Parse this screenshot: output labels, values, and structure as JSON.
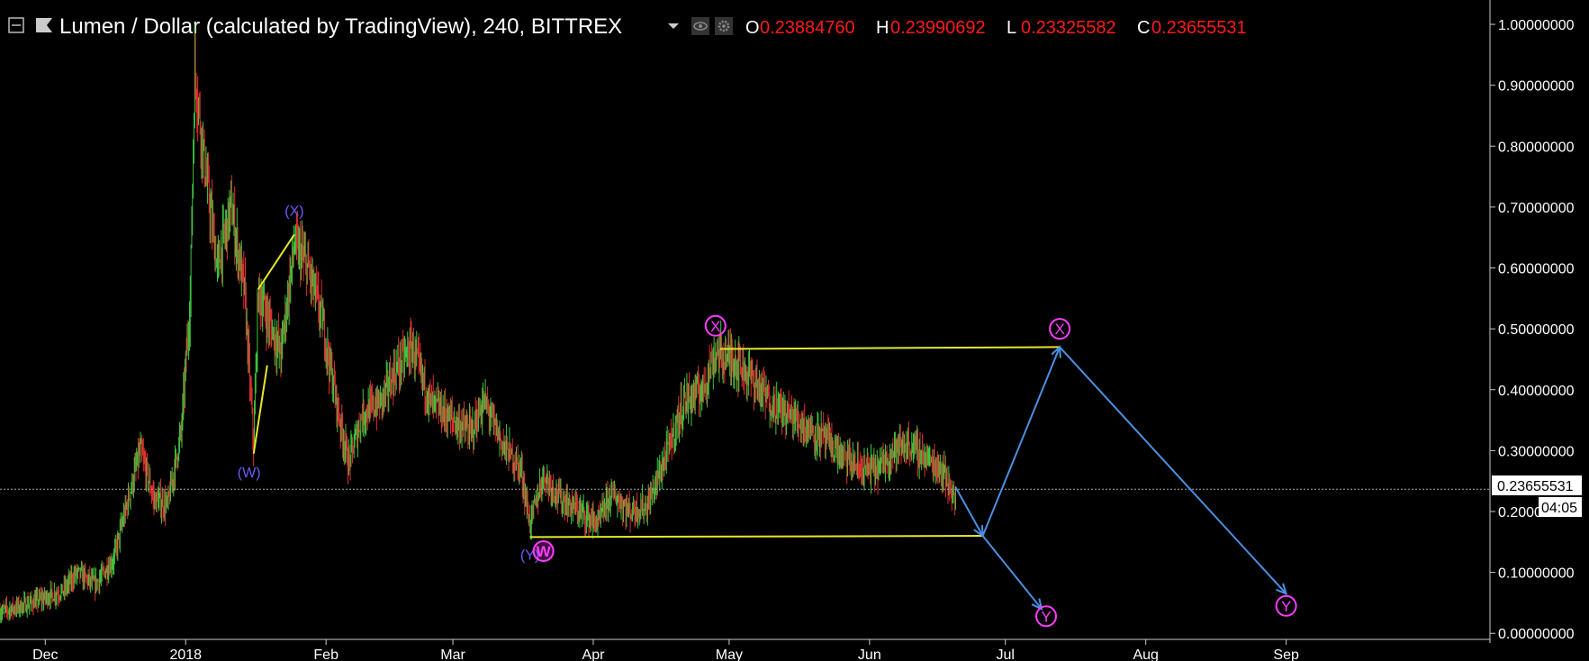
{
  "header": {
    "title": "Lumen / Dollar (calculated by TradingView), 240, BITTREX",
    "ohlc": [
      {
        "key": "O",
        "value": "0.23884760"
      },
      {
        "key": "H",
        "value": "0.23990692"
      },
      {
        "key": "L",
        "value": "0.23325582"
      },
      {
        "key": "C",
        "value": "0.23655531"
      }
    ],
    "icons": [
      "collapse-icon",
      "flag-icon",
      "dropdown-caret-icon",
      "eye-icon",
      "gear-icon"
    ]
  },
  "colors": {
    "background": "#000000",
    "text": "#ffffff",
    "ohlc_value": "#ff1a1a",
    "candle_up": "#3ec83e",
    "candle_down": "#e03030",
    "trendline": "#e6e62e",
    "projection": "#4a90e2",
    "wave_blue": "#6a5cff",
    "wave_pink": "#ff3cff",
    "axis_line": "#cccccc"
  },
  "price_tag": {
    "value": "0.23655531",
    "countdown": "04:05"
  },
  "chart_data": {
    "type": "candlestick",
    "series": [
      {
        "name": "XLM/USD",
        "interval": "240"
      }
    ],
    "x_ticks": [
      "Dec",
      "2018",
      "Feb",
      "Mar",
      "Apr",
      "May",
      "Jun",
      "Jul",
      "Aug",
      "Sep"
    ],
    "x_tick_dates": [
      "2017-12-01",
      "2018-01-01",
      "2018-02-01",
      "2018-03-01",
      "2018-04-01",
      "2018-05-01",
      "2018-06-01",
      "2018-07-01",
      "2018-08-01",
      "2018-09-01"
    ],
    "y_ticks": [
      "1.00000000",
      "0.90000000",
      "0.80000000",
      "0.70000000",
      "0.60000000",
      "0.50000000",
      "0.40000000",
      "0.30000000",
      "0.20000000",
      "0.10000000",
      "0.00000000"
    ],
    "y_tick_values": [
      1.0,
      0.9,
      0.8,
      0.7,
      0.6,
      0.5,
      0.4,
      0.3,
      0.2,
      0.1,
      0.0
    ],
    "ylim": [
      -0.01,
      1.04
    ],
    "xlim": [
      "2017-11-21",
      "2018-10-16"
    ],
    "price_path": [
      [
        "2017-11-21",
        0.035
      ],
      [
        "2017-11-28",
        0.05
      ],
      [
        "2017-12-05",
        0.07
      ],
      [
        "2017-12-08",
        0.1
      ],
      [
        "2017-12-12",
        0.08
      ],
      [
        "2017-12-16",
        0.12
      ],
      [
        "2017-12-20",
        0.24
      ],
      [
        "2017-12-22",
        0.3
      ],
      [
        "2017-12-25",
        0.22
      ],
      [
        "2017-12-28",
        0.21
      ],
      [
        "2017-12-31",
        0.33
      ],
      [
        "2018-01-02",
        0.55
      ],
      [
        "2018-01-03",
        0.93
      ],
      [
        "2018-01-05",
        0.78
      ],
      [
        "2018-01-08",
        0.6
      ],
      [
        "2018-01-11",
        0.7
      ],
      [
        "2018-01-14",
        0.56
      ],
      [
        "2018-01-16",
        0.31
      ],
      [
        "2018-01-17",
        0.56
      ],
      [
        "2018-01-20",
        0.5
      ],
      [
        "2018-01-22",
        0.46
      ],
      [
        "2018-01-25",
        0.64
      ],
      [
        "2018-01-28",
        0.6
      ],
      [
        "2018-01-31",
        0.52
      ],
      [
        "2018-02-04",
        0.35
      ],
      [
        "2018-02-06",
        0.28
      ],
      [
        "2018-02-09",
        0.36
      ],
      [
        "2018-02-13",
        0.38
      ],
      [
        "2018-02-17",
        0.44
      ],
      [
        "2018-02-20",
        0.47
      ],
      [
        "2018-02-24",
        0.38
      ],
      [
        "2018-03-01",
        0.35
      ],
      [
        "2018-03-05",
        0.33
      ],
      [
        "2018-03-08",
        0.38
      ],
      [
        "2018-03-12",
        0.31
      ],
      [
        "2018-03-16",
        0.27
      ],
      [
        "2018-03-18",
        0.18
      ],
      [
        "2018-03-21",
        0.26
      ],
      [
        "2018-03-25",
        0.22
      ],
      [
        "2018-03-29",
        0.2
      ],
      [
        "2018-04-02",
        0.18
      ],
      [
        "2018-04-05",
        0.23
      ],
      [
        "2018-04-09",
        0.2
      ],
      [
        "2018-04-13",
        0.21
      ],
      [
        "2018-04-17",
        0.29
      ],
      [
        "2018-04-21",
        0.38
      ],
      [
        "2018-04-25",
        0.4
      ],
      [
        "2018-04-28",
        0.46
      ],
      [
        "2018-05-02",
        0.45
      ],
      [
        "2018-05-06",
        0.42
      ],
      [
        "2018-05-10",
        0.38
      ],
      [
        "2018-05-14",
        0.36
      ],
      [
        "2018-05-18",
        0.34
      ],
      [
        "2018-05-22",
        0.32
      ],
      [
        "2018-05-26",
        0.29
      ],
      [
        "2018-05-30",
        0.27
      ],
      [
        "2018-06-03",
        0.27
      ],
      [
        "2018-06-06",
        0.3
      ],
      [
        "2018-06-10",
        0.31
      ],
      [
        "2018-06-13",
        0.29
      ],
      [
        "2018-06-17",
        0.27
      ],
      [
        "2018-06-20",
        0.22
      ]
    ],
    "trendlines": [
      {
        "from": [
          "2018-01-17",
          0.565
        ],
        "to": [
          "2018-01-25",
          0.655
        ]
      },
      {
        "from": [
          "2018-01-16",
          0.295
        ],
        "to": [
          "2018-01-19",
          0.44
        ]
      },
      {
        "from": [
          "2018-04-29",
          0.467
        ],
        "to": [
          "2018-07-13",
          0.47
        ]
      },
      {
        "from": [
          "2018-03-18",
          0.158
        ],
        "to": [
          "2018-06-26",
          0.16
        ]
      }
    ],
    "projections": [
      {
        "from": [
          "2018-06-20",
          0.24
        ],
        "to": [
          "2018-06-26",
          0.16
        ]
      },
      {
        "from": [
          "2018-06-26",
          0.16
        ],
        "to": [
          "2018-07-13",
          0.47
        ]
      },
      {
        "from": [
          "2018-07-13",
          0.47
        ],
        "to": [
          "2018-09-01",
          0.065
        ]
      },
      {
        "from": [
          "2018-06-26",
          0.16
        ],
        "to": [
          "2018-07-09",
          0.04
        ]
      }
    ],
    "wave_labels": [
      {
        "text": "(W)",
        "style": "blue",
        "date": "2018-01-15",
        "price": 0.265,
        "circled": false
      },
      {
        "text": "(X)",
        "style": "blue",
        "date": "2018-01-25",
        "price": 0.695,
        "circled": false
      },
      {
        "text": "(Y)",
        "style": "blue",
        "date": "2018-03-18",
        "price": 0.13,
        "circled": false
      },
      {
        "text": "W",
        "style": "pink",
        "date": "2018-03-21",
        "price": 0.135,
        "circled": true
      },
      {
        "text": "X",
        "style": "pink",
        "date": "2018-04-28",
        "price": 0.505,
        "circled": true
      },
      {
        "text": "X",
        "style": "pink",
        "date": "2018-07-13",
        "price": 0.5,
        "circled": true
      },
      {
        "text": "Y",
        "style": "pink",
        "date": "2018-07-10",
        "price": 0.028,
        "circled": true
      },
      {
        "text": "Y",
        "style": "pink",
        "date": "2018-09-01",
        "price": 0.045,
        "circled": true
      }
    ],
    "last_price": 0.23655531,
    "grid": false,
    "legend": "none"
  }
}
